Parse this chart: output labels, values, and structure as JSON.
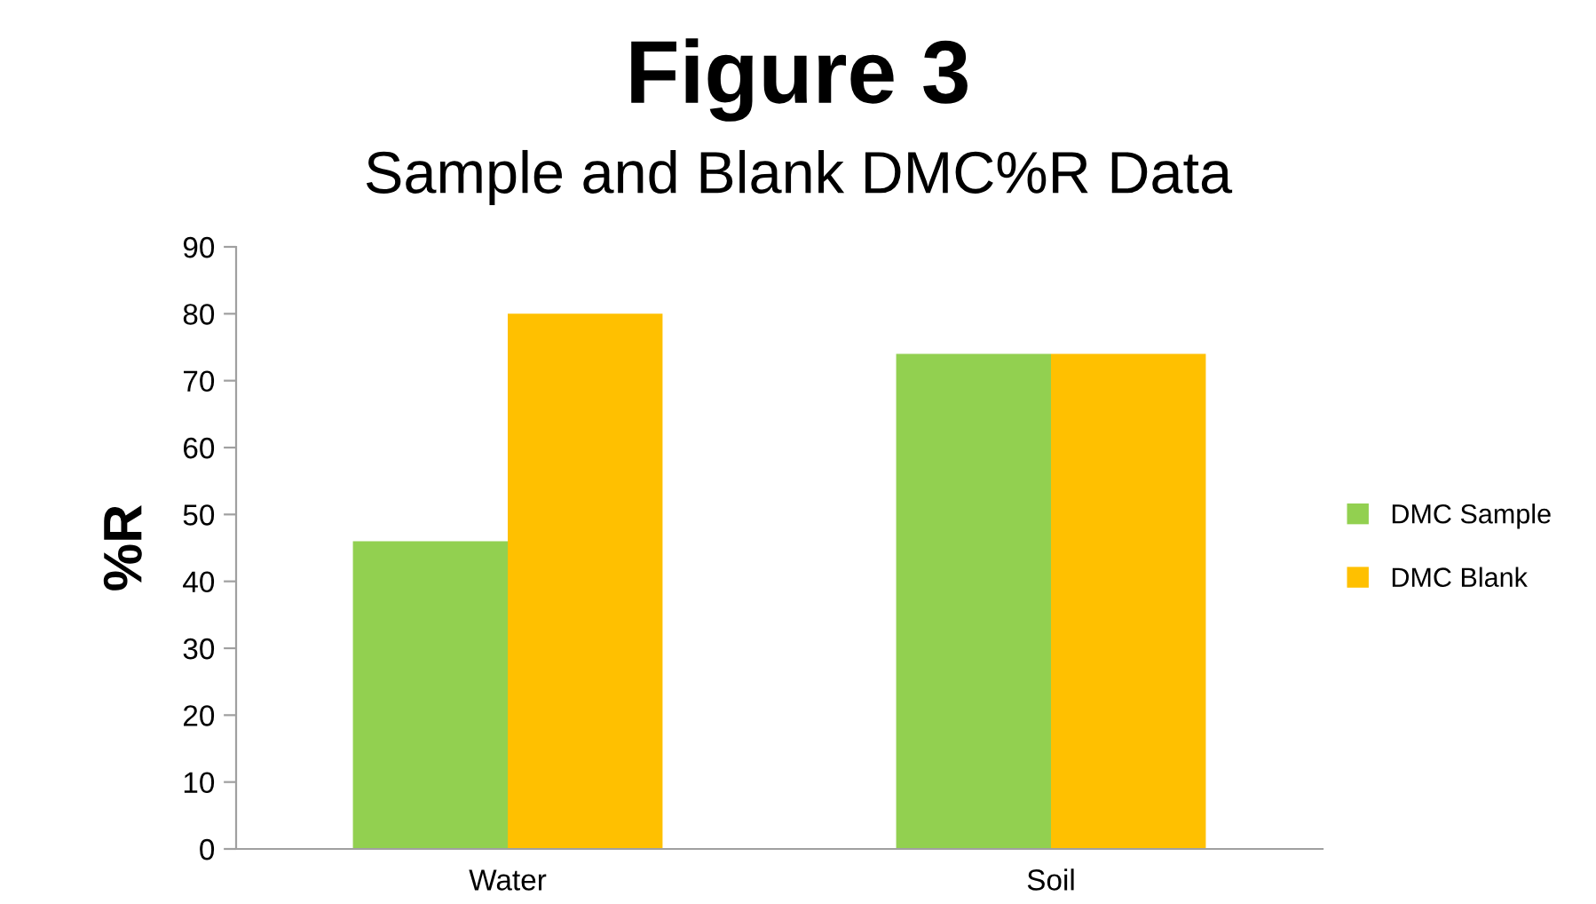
{
  "chart_data": {
    "type": "bar",
    "title": "Figure 3",
    "subtitle": "Sample and Blank DMC%R Data",
    "ylabel": "%R",
    "categories": [
      "Water",
      "Soil"
    ],
    "series": [
      {
        "name": "DMC Sample",
        "color": "#92d050",
        "values": [
          46,
          74
        ]
      },
      {
        "name": "DMC Blank",
        "color": "#ffc000",
        "values": [
          80,
          74
        ]
      }
    ],
    "ylim": [
      0,
      90
    ],
    "yticks": [
      0,
      10,
      20,
      30,
      40,
      50,
      60,
      70,
      80,
      90
    ],
    "grid": false,
    "legend": "right"
  }
}
